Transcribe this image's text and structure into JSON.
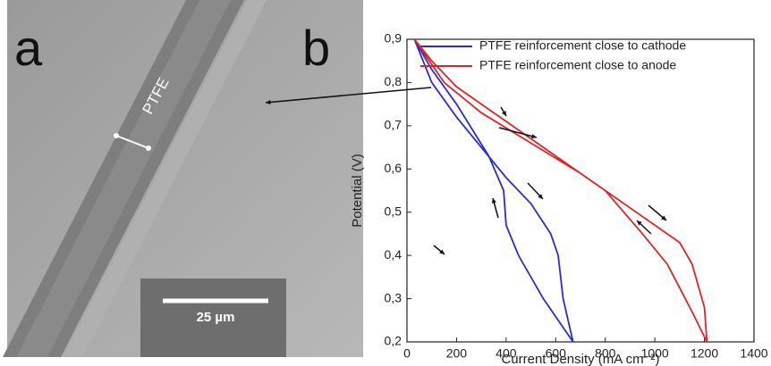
{
  "panel_a": {
    "label": "a",
    "annotation": "PTFE",
    "scale_bar": "25 µm"
  },
  "chart_data": {
    "type": "line",
    "panel_label": "b",
    "x_label": "Current Density (mA cm⁻²)",
    "y_label": "Potential (V)",
    "xlim": [
      0,
      1400
    ],
    "xticks": [
      0,
      200,
      400,
      600,
      800,
      1000,
      1200,
      1400
    ],
    "ylim": [
      0.2,
      0.9
    ],
    "yticks": [
      {
        "value": 0.2,
        "label": "0,2"
      },
      {
        "value": 0.3,
        "label": "0,3"
      },
      {
        "value": 0.4,
        "label": "0,4"
      },
      {
        "value": 0.5,
        "label": "0,5"
      },
      {
        "value": 0.6,
        "label": "0,6"
      },
      {
        "value": 0.7,
        "label": "0,7"
      },
      {
        "value": 0.8,
        "label": "0,8"
      },
      {
        "value": 0.9,
        "label": "0,9"
      }
    ],
    "series": [
      {
        "name": "PTFE reinforcement close to cathode",
        "color": "#2b2bd6",
        "x": [
          30,
          100,
          200,
          300,
          400,
          500,
          580,
          610,
          630,
          670,
          550,
          450,
          400,
          390,
          330,
          200,
          100,
          30
        ],
        "values": [
          0.9,
          0.8,
          0.72,
          0.65,
          0.58,
          0.52,
          0.45,
          0.4,
          0.3,
          0.2,
          0.3,
          0.4,
          0.47,
          0.55,
          0.63,
          0.75,
          0.83,
          0.9
        ]
      },
      {
        "name": "PTFE reinforcement close to anode",
        "color": "#e02424",
        "x": [
          30,
          150,
          300,
          500,
          700,
          800,
          950,
          1100,
          1150,
          1200,
          1210,
          1150,
          1050,
          950,
          800,
          600,
          400,
          200,
          100,
          30
        ],
        "values": [
          0.9,
          0.8,
          0.73,
          0.66,
          0.59,
          0.55,
          0.49,
          0.43,
          0.38,
          0.28,
          0.2,
          0.27,
          0.38,
          0.45,
          0.55,
          0.63,
          0.71,
          0.79,
          0.85,
          0.9
        ]
      }
    ]
  }
}
